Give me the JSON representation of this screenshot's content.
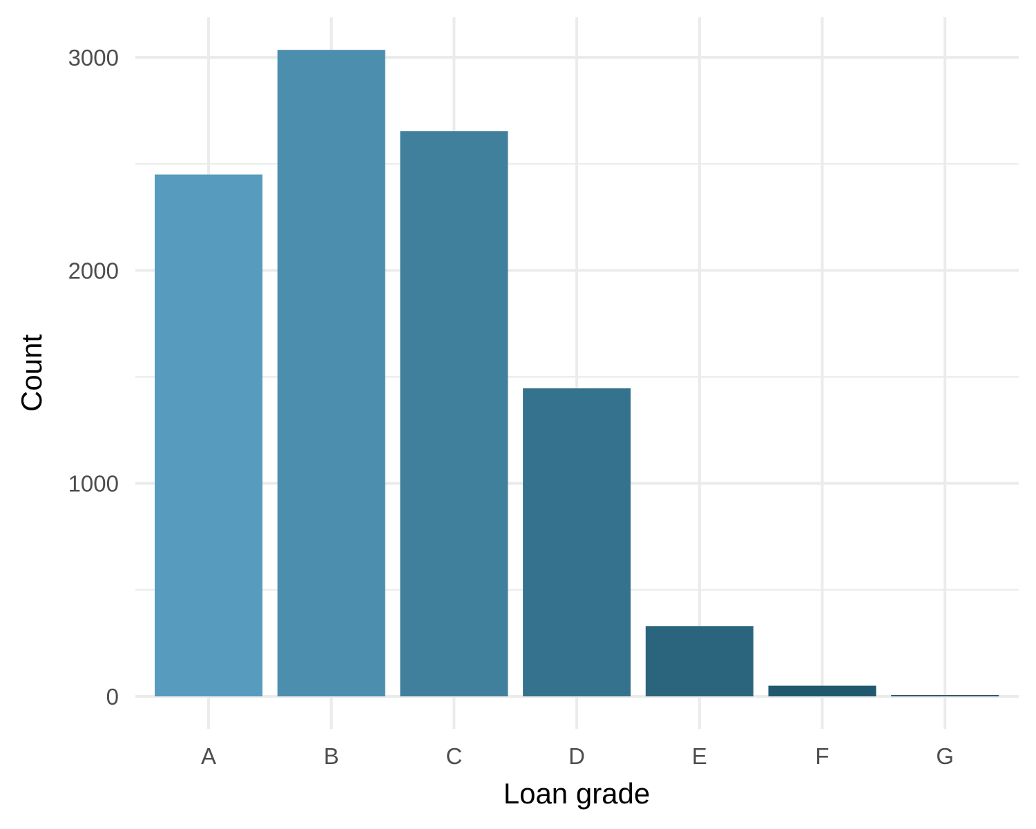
{
  "chart_data": {
    "type": "bar",
    "xlabel": "Loan grade",
    "ylabel": "Count",
    "categories": [
      "A",
      "B",
      "C",
      "D",
      "E",
      "F",
      "G"
    ],
    "values": [
      2450,
      3035,
      2653,
      1446,
      330,
      50,
      6
    ],
    "ylim": [
      0,
      3000
    ],
    "yticks": [
      0,
      1000,
      2000,
      3000
    ],
    "grid": true,
    "legend": "none",
    "colors": [
      "#579bbe",
      "#4b8eae",
      "#41809d",
      "#34728d",
      "#2a657d",
      "#20586e",
      "#174b5f"
    ]
  }
}
